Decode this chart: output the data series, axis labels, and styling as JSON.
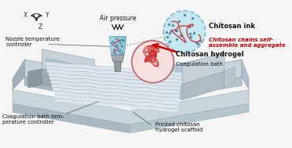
{
  "background_color": "#f5f5f5",
  "labels": {
    "air_pressure": "Air pressure",
    "nozzle_controller": "Nozzle temperature\ncontroller",
    "chitosan_ink": "Chitosan ink",
    "self_assemble": "Chitosan chains self-\nassemble and aggregate",
    "chitosan_hydrogel": "Chitosan hydrogel",
    "coagulation_bath": "Coagulation bath",
    "coagulation_controller": "Coagulation bath tem-\nperature controller",
    "printed_scaffold": "Printed chitosan\nhydrogel scaffold"
  },
  "colors": {
    "base_top": "#c8d8e0",
    "base_top2": "#b8cad4",
    "base_left": "#9aaab8",
    "base_front": "#aabbc8",
    "base_right": "#b0c2cc",
    "wall_left_top": "#c0ccd4",
    "wall_left_face": "#9090a0",
    "wall_left_front": "#a8a8b8",
    "container_top": "#c5d5de",
    "container_inner": "#b0c8d8",
    "container_back": "#c8d8e0",
    "container_right_face": "#b8c8d0",
    "container_front_face": "#b0c0c8",
    "scaffold_bg": "#b5d0e0",
    "scaffold_line": "#e8edf5",
    "scaffold_shadow": "#8898a8",
    "nozzle_barrel": "#a0d0e0",
    "nozzle_barrel2": "#80b8cc",
    "nozzle_tip": "#aaaaaa",
    "nozzle_tip2": "#888888",
    "ink_circle_fill": "#c5e8f0",
    "ink_circle_edge": "#88b8c8",
    "hydrogel_circle_fill": "#f5e0e0",
    "hydrogel_circle_edge": "#c06060",
    "arrow_red": "#cc0000",
    "self_assemble_color": "#cc0000",
    "strand_red": "#cc3333",
    "dot_blue": "#5580a0",
    "text_dark": "#111111",
    "line_color": "#555555"
  }
}
